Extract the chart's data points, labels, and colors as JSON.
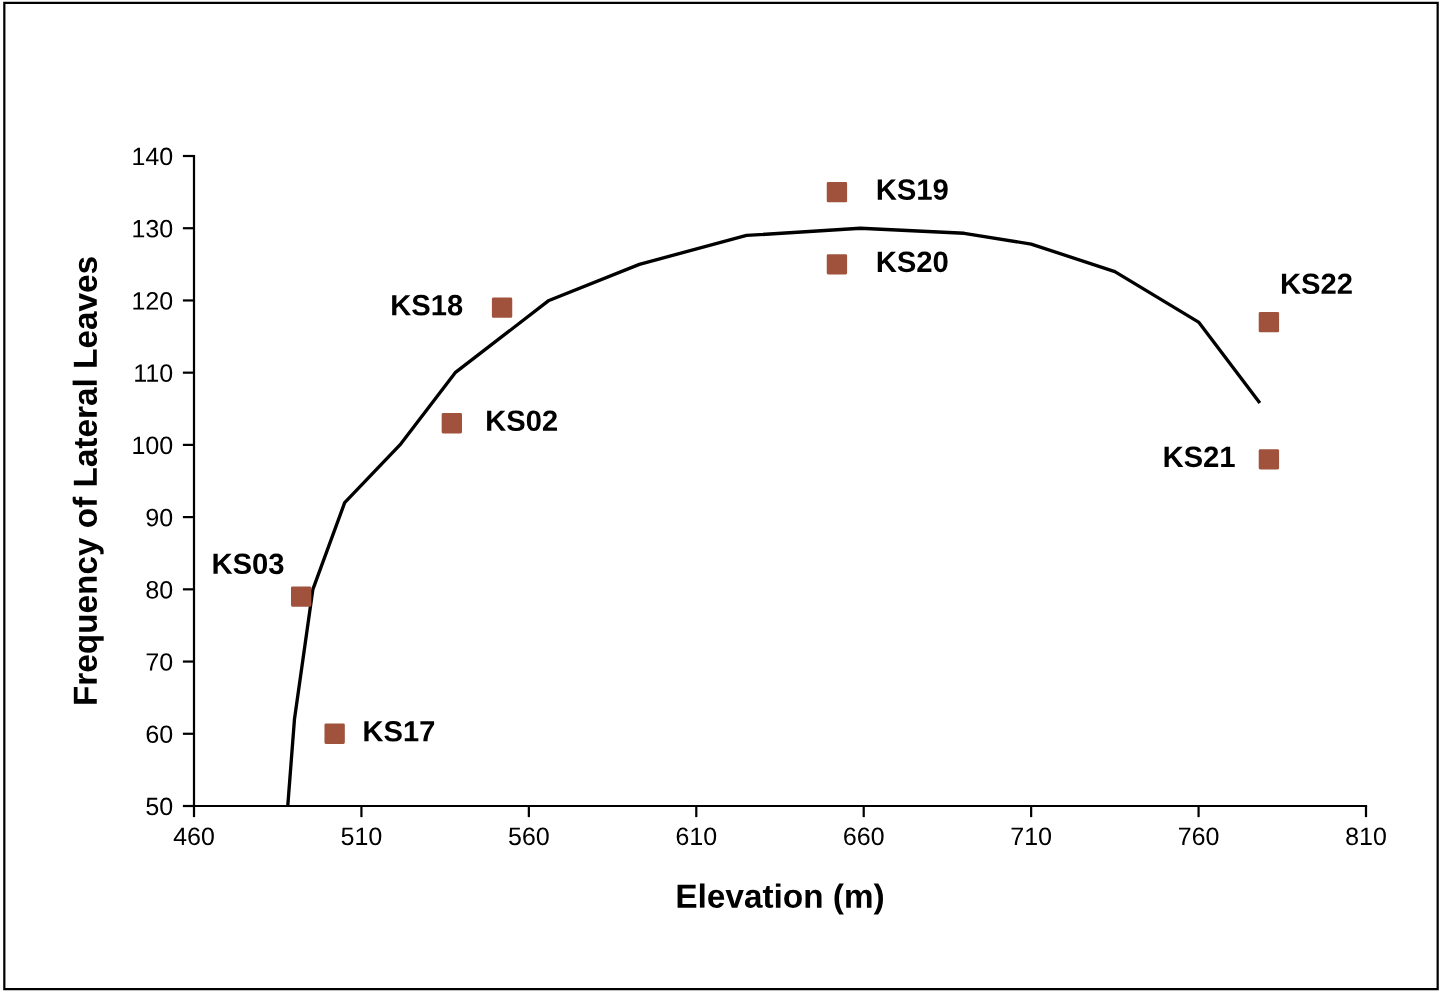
{
  "chart_data": {
    "type": "scatter",
    "xlabel": "Elevation (m)",
    "ylabel": "Frequency of Lateral Leaves",
    "xlim": [
      460,
      810
    ],
    "xticks": [
      460,
      510,
      560,
      610,
      660,
      710,
      760,
      810
    ],
    "ylim": [
      50,
      140
    ],
    "yticks": [
      50,
      60,
      70,
      80,
      90,
      100,
      110,
      120,
      130,
      140
    ],
    "grid": false,
    "legend": false,
    "series": [
      {
        "marker": "square",
        "color": "#a0523d",
        "x": [
          492,
          502,
          537,
          552,
          652,
          652,
          781,
          781
        ],
        "values": [
          79,
          60,
          103,
          119,
          135,
          125,
          117,
          98
        ],
        "value_labels": [
          "KS03",
          "KS17",
          "KS02",
          "KS18",
          "KS19",
          "KS20",
          "KS22",
          "KS21"
        ]
      },
      {
        "type": "line",
        "color": "#000000",
        "line_style": "solid",
        "x": [
          488,
          490,
          495.5,
          505,
          521.5,
          538,
          566,
          593,
          625,
          659,
          690,
          710,
          735,
          760,
          778
        ],
        "values": [
          50,
          62,
          80,
          92,
          100,
          110,
          120,
          125,
          129,
          130,
          129.3,
          127.8,
          124,
          117,
          106
        ]
      }
    ]
  }
}
